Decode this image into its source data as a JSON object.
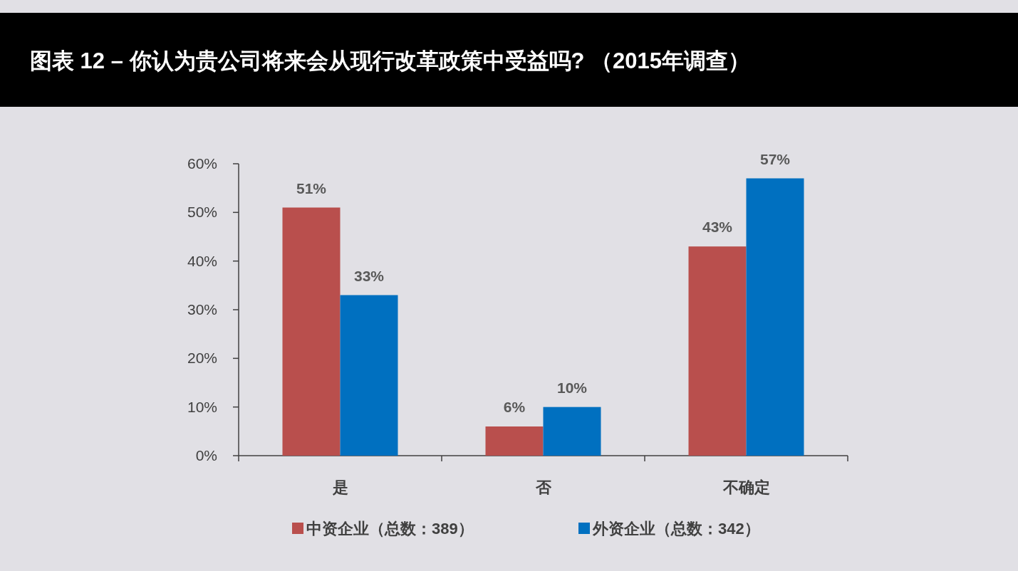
{
  "chart_data": {
    "type": "bar",
    "title": "图表 12 – 你认为贵公司将来会从现行改革政策中受益吗?  （2015年调查）",
    "categories": [
      "是",
      "否",
      "不确定"
    ],
    "series": [
      {
        "name": "中资企业（总数：389）",
        "color": "#b94f4d",
        "values": [
          51,
          6,
          43
        ],
        "value_labels": [
          "51%",
          "6%",
          "43%"
        ]
      },
      {
        "name": "外资企业（总数：342）",
        "color": "#0070c0",
        "values": [
          33,
          10,
          57
        ],
        "value_labels": [
          "33%",
          "10%",
          "57%"
        ]
      }
    ],
    "ylim": [
      0,
      60
    ],
    "yticks": [
      {
        "value": 0,
        "label": "0%"
      },
      {
        "value": 10,
        "label": "10%"
      },
      {
        "value": 20,
        "label": "20%"
      },
      {
        "value": 30,
        "label": "30%"
      },
      {
        "value": 40,
        "label": "40%"
      },
      {
        "value": 50,
        "label": "50%"
      },
      {
        "value": 60,
        "label": "60%"
      }
    ],
    "legend": "bottom"
  }
}
